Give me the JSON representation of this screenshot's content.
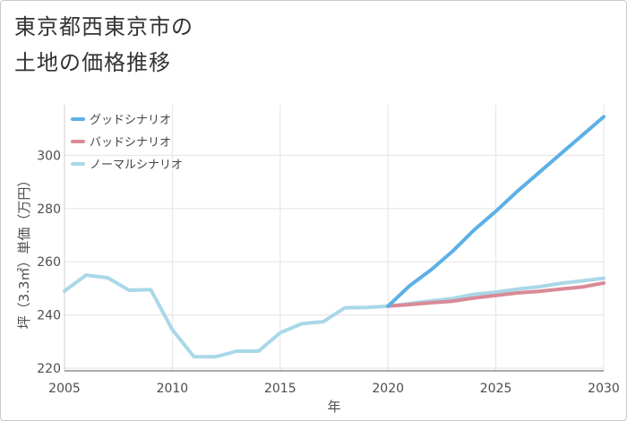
{
  "chart_data": {
    "type": "line",
    "title_lines": [
      "東京都西東京市の",
      "土地の価格推移"
    ],
    "xlabel": "年",
    "ylabel": "坪（3.3㎡）単価（万円）",
    "xlim": [
      2005,
      2030
    ],
    "ylim": [
      219,
      319
    ],
    "x_ticks": [
      2005,
      2010,
      2015,
      2020,
      2025,
      2030
    ],
    "y_ticks": [
      220,
      240,
      260,
      280,
      300
    ],
    "legend_position": "top-left",
    "series": [
      {
        "name": "グッドシナリオ",
        "color": "#5cb0e5",
        "x": [
          2020,
          2021,
          2022,
          2023,
          2024,
          2025,
          2026,
          2027,
          2028,
          2029,
          2030
        ],
        "y": [
          243.3,
          251,
          257,
          264,
          272,
          279,
          286.5,
          293.5,
          300.5,
          307.5,
          314.5
        ]
      },
      {
        "name": "バッドシナリオ",
        "color": "#d98a96",
        "x": [
          2020,
          2021,
          2022,
          2023,
          2024,
          2025,
          2026,
          2027,
          2028,
          2029,
          2030
        ],
        "y": [
          243.3,
          243.9,
          244.6,
          245.2,
          246.4,
          247.3,
          248.3,
          248.9,
          249.7,
          250.5,
          252
        ]
      },
      {
        "name": "ノーマルシナリオ",
        "color": "#a9d8e8",
        "x": [
          2005,
          2006,
          2007,
          2008,
          2009,
          2010,
          2011,
          2012,
          2013,
          2014,
          2015,
          2016,
          2017,
          2018,
          2019,
          2020,
          2021,
          2022,
          2023,
          2024,
          2025,
          2026,
          2027,
          2028,
          2029,
          2030
        ],
        "y": [
          249,
          255,
          254,
          249.3,
          249.5,
          234.5,
          224.3,
          224.3,
          226.4,
          226.4,
          233.3,
          236.7,
          237.5,
          242.7,
          242.8,
          243.3,
          244.3,
          245.3,
          246.2,
          247.8,
          248.6,
          249.7,
          250.6,
          251.9,
          252.8,
          253.8
        ]
      }
    ]
  }
}
